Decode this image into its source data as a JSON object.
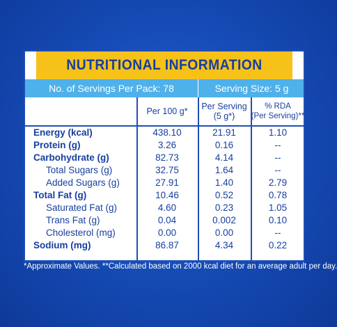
{
  "title": "NUTRITIONAL INFORMATION",
  "servings_per_pack": "No. of Servings Per Pack: 78",
  "serving_size": "Serving Size: 5 g",
  "columns": {
    "per100g": "Per 100 g*",
    "per_serving_l1": "Per Serving",
    "per_serving_l2": "(5 g*)",
    "rda_l1": "% RDA",
    "rda_l2": "(Per Serving)**"
  },
  "rows": [
    {
      "label": "Energy (kcal)",
      "per100g": "438.10",
      "serving": "21.91",
      "rda": "1.10"
    },
    {
      "label": "Protein (g)",
      "per100g": "3.26",
      "serving": "0.16",
      "rda": "--"
    },
    {
      "label": "Carbohydrate (g)",
      "per100g": "82.73",
      "serving": "4.14",
      "rda": "--"
    },
    {
      "label": "Total Sugars (g)",
      "per100g": "32.75",
      "serving": "1.64",
      "rda": "--"
    },
    {
      "label": "Added Sugars (g)",
      "per100g": "27.91",
      "serving": "1.40",
      "rda": "2.79"
    },
    {
      "label": "Total Fat (g)",
      "per100g": "10.46",
      "serving": "0.52",
      "rda": "0.78"
    },
    {
      "label": "Saturated Fat (g)",
      "per100g": "4.60",
      "serving": "0.23",
      "rda": "1.05"
    },
    {
      "label": "Trans Fat (g)",
      "per100g": "0.04",
      "serving": "0.002",
      "rda": "0.10"
    },
    {
      "label": "Cholesterol (mg)",
      "per100g": "0.00",
      "serving": "0.00",
      "rda": "--"
    },
    {
      "label": "Sodium (mg)",
      "per100g": "86.87",
      "serving": "4.34",
      "rda": "0.22"
    }
  ],
  "footnote": "*Approximate Values. **Calculated based on 2000 kcal diet for an average adult per day.",
  "colors": {
    "background": "#1447b0",
    "title_bar": "#f6c21a",
    "servings_bar": "#4fb1ea",
    "text": "#163fa0"
  }
}
